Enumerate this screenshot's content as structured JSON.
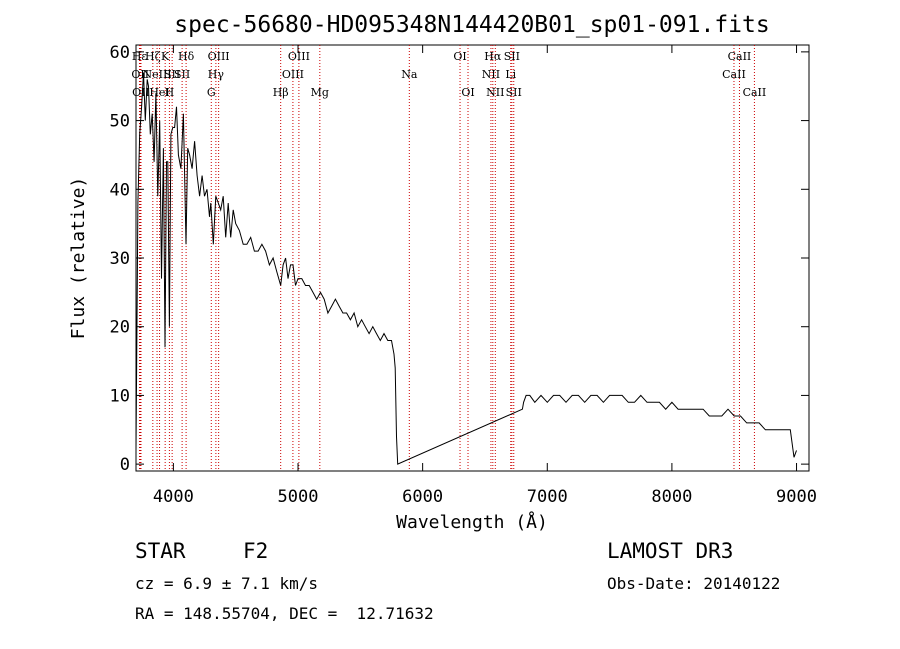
{
  "chart_data": {
    "type": "line",
    "title": "spec-56680-HD095348N144420B01_sp01-091.fits",
    "xlabel": "Wavelength (Å)",
    "ylabel": "Flux (relative)",
    "xlim": [
      3700,
      9100
    ],
    "ylim": [
      -1,
      61
    ],
    "xticks": [
      4000,
      5000,
      6000,
      7000,
      8000,
      9000
    ],
    "yticks": [
      0,
      10,
      20,
      30,
      40,
      50,
      60
    ],
    "grid": false,
    "line_color": "#000000",
    "marker_color": "#cc0000",
    "series": [
      {
        "x": [
          3700,
          3715,
          3730,
          3745,
          3760,
          3775,
          3790,
          3800,
          3815,
          3830,
          3845,
          3860,
          3875,
          3890,
          3905,
          3920,
          3933,
          3945,
          3955,
          3968,
          3980,
          3995,
          4010,
          4025,
          4040,
          4060,
          4080,
          4101,
          4115,
          4130,
          4150,
          4170,
          4190,
          4210,
          4230,
          4250,
          4270,
          4290,
          4300,
          4320,
          4340,
          4360,
          4380,
          4400,
          4420,
          4440,
          4460,
          4480,
          4500,
          4530,
          4560,
          4590,
          4620,
          4650,
          4680,
          4710,
          4740,
          4770,
          4800,
          4830,
          4861,
          4880,
          4900,
          4920,
          4940,
          4960,
          4980,
          5000,
          5030,
          5060,
          5090,
          5120,
          5150,
          5180,
          5210,
          5240,
          5270,
          5300,
          5330,
          5360,
          5390,
          5420,
          5450,
          5480,
          5510,
          5540,
          5570,
          5600,
          5630,
          5660,
          5690,
          5720,
          5750,
          5770,
          5780,
          5790,
          5800,
          6800,
          6810,
          6830,
          6860,
          6900,
          6950,
          7000,
          7050,
          7100,
          7150,
          7200,
          7250,
          7300,
          7350,
          7400,
          7450,
          7500,
          7550,
          7600,
          7650,
          7700,
          7750,
          7800,
          7850,
          7900,
          7950,
          8000,
          8050,
          8100,
          8150,
          8200,
          8250,
          8300,
          8350,
          8400,
          8450,
          8500,
          8550,
          8600,
          8650,
          8700,
          8750,
          8800,
          8850,
          8900,
          8950,
          8980,
          9000
        ],
        "y": [
          2,
          38,
          48,
          52,
          57,
          50,
          56,
          55,
          48,
          51,
          44,
          54,
          39,
          50,
          27,
          46,
          17,
          44,
          44,
          20,
          48,
          49,
          49,
          52,
          45,
          43,
          51,
          32,
          46,
          45,
          43,
          47,
          42,
          39,
          42,
          39,
          40,
          36,
          38,
          32,
          39,
          38,
          37,
          39,
          33,
          38,
          33,
          37,
          35,
          34,
          32,
          32,
          33,
          31,
          31,
          32,
          31,
          29,
          30,
          28,
          26,
          29,
          30,
          27,
          29,
          29,
          26,
          27,
          27,
          26,
          26,
          25,
          24,
          25,
          24,
          22,
          23,
          24,
          23,
          22,
          22,
          21,
          22,
          20,
          21,
          20,
          19,
          20,
          19,
          18,
          19,
          18,
          18,
          16,
          14,
          4,
          0,
          8,
          9,
          10,
          10,
          9,
          10,
          9,
          10,
          10,
          9,
          10,
          10,
          9,
          10,
          10,
          9,
          10,
          10,
          10,
          9,
          9,
          10,
          9,
          9,
          9,
          8,
          9,
          8,
          8,
          8,
          8,
          8,
          7,
          7,
          7,
          8,
          7,
          7,
          6,
          6,
          6,
          5,
          5,
          5,
          5,
          5,
          1,
          2
        ]
      }
    ],
    "lines": [
      {
        "x": 3728,
        "label": "Hε",
        "row": 0
      },
      {
        "x": 3734,
        "label": "OII",
        "row": 1
      },
      {
        "x": 3740,
        "label": "OII",
        "row": 2
      },
      {
        "x": 3835,
        "label": "Hζ",
        "row": 0
      },
      {
        "x": 3869,
        "label": "NeIII",
        "row": 1
      },
      {
        "x": 3889,
        "label": "HeI",
        "row": 2
      },
      {
        "x": 3934,
        "label": "K",
        "row": 0
      },
      {
        "x": 3968,
        "label": "H",
        "row": 2
      },
      {
        "x": 3990,
        "label": "SII",
        "row": 1
      },
      {
        "x": 4102,
        "label": "Hδ",
        "row": 0
      },
      {
        "x": 4070,
        "label": "SII",
        "row": 1
      },
      {
        "x": 4304,
        "label": "G",
        "row": 2
      },
      {
        "x": 4341,
        "label": "Hγ",
        "row": 1
      },
      {
        "x": 4363,
        "label": "OIII",
        "row": 0
      },
      {
        "x": 4861,
        "label": "Hβ",
        "row": 2
      },
      {
        "x": 4959,
        "label": "OIII",
        "row": 1
      },
      {
        "x": 5007,
        "label": "OIII",
        "row": 0
      },
      {
        "x": 5175,
        "label": "Mg",
        "row": 2
      },
      {
        "x": 5893,
        "label": "Na",
        "row": 1
      },
      {
        "x": 6300,
        "label": "OI",
        "row": 0
      },
      {
        "x": 6364,
        "label": "OI",
        "row": 2
      },
      {
        "x": 6548,
        "label": "NII",
        "row": 1
      },
      {
        "x": 6563,
        "label": "Hα",
        "row": 0
      },
      {
        "x": 6583,
        "label": "NII",
        "row": 2
      },
      {
        "x": 6707,
        "label": "Li",
        "row": 1
      },
      {
        "x": 6716,
        "label": "SII",
        "row": 0
      },
      {
        "x": 6731,
        "label": "SII",
        "row": 2
      },
      {
        "x": 8498,
        "label": "CaII",
        "row": 1
      },
      {
        "x": 8542,
        "label": "CaII",
        "row": 0
      },
      {
        "x": 8662,
        "label": "CaII",
        "row": 2
      }
    ]
  },
  "info": {
    "object_class": "STAR",
    "subclass": "F2",
    "redshift": "cz = 6.9 ± 7.1 km/s",
    "coords": "RA = 148.55704, DEC =  12.71632",
    "survey": "LAMOST DR3",
    "obs_date": "Obs-Date: 20140122"
  }
}
